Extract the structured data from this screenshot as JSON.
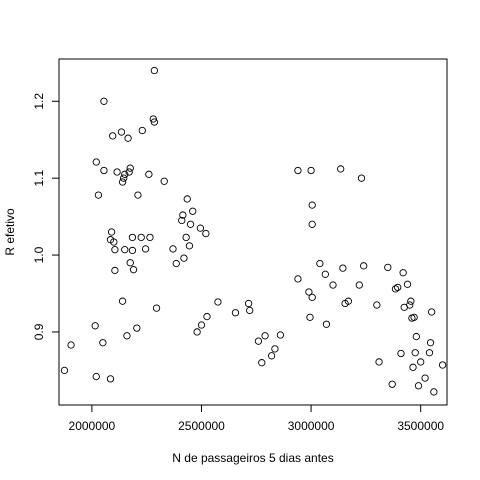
{
  "chart_data": {
    "type": "scatter",
    "xlabel": "N de passageiros 5 dias antes",
    "ylabel": "R efetivo",
    "xlim": [
      1850000,
      3620000
    ],
    "ylim": [
      0.805,
      1.255
    ],
    "xticks": [
      2000000,
      2500000,
      3000000,
      3500000
    ],
    "xtick_labels": [
      "2000000",
      "2500000",
      "3000000",
      "3500000"
    ],
    "yticks": [
      0.9,
      1.0,
      1.1,
      1.2
    ],
    "ytick_labels": [
      "0.9",
      "1.0",
      "1.1",
      "1.2"
    ],
    "grid": false,
    "marker": "open-circle",
    "series": [
      {
        "points": [
          [
            1875000,
            0.85
          ],
          [
            1905000,
            0.883
          ],
          [
            2015000,
            0.908
          ],
          [
            2020000,
            0.842
          ],
          [
            2020000,
            1.121
          ],
          [
            2030000,
            1.078
          ],
          [
            2050000,
            0.886
          ],
          [
            2055000,
            1.11
          ],
          [
            2055000,
            1.2
          ],
          [
            2085000,
            0.839
          ],
          [
            2085000,
            1.02
          ],
          [
            2090000,
            1.03
          ],
          [
            2095000,
            1.155
          ],
          [
            2100000,
            1.017
          ],
          [
            2105000,
            1.007
          ],
          [
            2105000,
            0.98
          ],
          [
            2115000,
            1.108
          ],
          [
            2135000,
            1.16
          ],
          [
            2140000,
            1.095
          ],
          [
            2140000,
            0.94
          ],
          [
            2145000,
            1.1
          ],
          [
            2150000,
            1.105
          ],
          [
            2150000,
            1.007
          ],
          [
            2160000,
            0.895
          ],
          [
            2165000,
            1.152
          ],
          [
            2170000,
            1.108
          ],
          [
            2175000,
            1.113
          ],
          [
            2175000,
            0.99
          ],
          [
            2185000,
            1.023
          ],
          [
            2185000,
            1.006
          ],
          [
            2190000,
            0.981
          ],
          [
            2205000,
            0.905
          ],
          [
            2210000,
            1.078
          ],
          [
            2225000,
            1.023
          ],
          [
            2230000,
            1.162
          ],
          [
            2245000,
            1.008
          ],
          [
            2260000,
            1.105
          ],
          [
            2265000,
            1.023
          ],
          [
            2280000,
            1.177
          ],
          [
            2285000,
            1.173
          ],
          [
            2285000,
            1.24
          ],
          [
            2295000,
            0.931
          ],
          [
            2330000,
            1.096
          ],
          [
            2370000,
            1.008
          ],
          [
            2385000,
            0.989
          ],
          [
            2410000,
            1.045
          ],
          [
            2415000,
            1.052
          ],
          [
            2420000,
            0.996
          ],
          [
            2430000,
            1.023
          ],
          [
            2435000,
            1.073
          ],
          [
            2445000,
            1.012
          ],
          [
            2450000,
            1.04
          ],
          [
            2460000,
            1.057
          ],
          [
            2480000,
            0.9
          ],
          [
            2495000,
            1.035
          ],
          [
            2500000,
            0.909
          ],
          [
            2520000,
            1.028
          ],
          [
            2525000,
            0.92
          ],
          [
            2575000,
            0.939
          ],
          [
            2655000,
            0.925
          ],
          [
            2715000,
            0.937
          ],
          [
            2720000,
            0.928
          ],
          [
            2760000,
            0.888
          ],
          [
            2775000,
            0.86
          ],
          [
            2790000,
            0.895
          ],
          [
            2820000,
            0.869
          ],
          [
            2835000,
            0.878
          ],
          [
            2860000,
            0.896
          ],
          [
            2940000,
            1.11
          ],
          [
            2940000,
            0.969
          ],
          [
            2990000,
            0.952
          ],
          [
            2995000,
            0.919
          ],
          [
            3000000,
            1.11
          ],
          [
            3005000,
            1.065
          ],
          [
            3005000,
            1.04
          ],
          [
            3005000,
            0.945
          ],
          [
            3040000,
            0.989
          ],
          [
            3065000,
            0.975
          ],
          [
            3070000,
            0.91
          ],
          [
            3100000,
            0.961
          ],
          [
            3135000,
            1.112
          ],
          [
            3145000,
            0.983
          ],
          [
            3155000,
            0.937
          ],
          [
            3170000,
            0.94
          ],
          [
            3220000,
            0.961
          ],
          [
            3230000,
            1.1
          ],
          [
            3240000,
            0.986
          ],
          [
            3300000,
            0.935
          ],
          [
            3310000,
            0.861
          ],
          [
            3350000,
            0.984
          ],
          [
            3370000,
            0.832
          ],
          [
            3385000,
            0.956
          ],
          [
            3395000,
            0.958
          ],
          [
            3410000,
            0.872
          ],
          [
            3420000,
            0.977
          ],
          [
            3425000,
            0.932
          ],
          [
            3440000,
            0.962
          ],
          [
            3450000,
            0.935
          ],
          [
            3455000,
            0.94
          ],
          [
            3460000,
            0.918
          ],
          [
            3465000,
            0.854
          ],
          [
            3470000,
            0.919
          ],
          [
            3475000,
            0.873
          ],
          [
            3480000,
            0.894
          ],
          [
            3490000,
            0.83
          ],
          [
            3500000,
            0.861
          ],
          [
            3520000,
            0.84
          ],
          [
            3540000,
            0.873
          ],
          [
            3545000,
            0.886
          ],
          [
            3550000,
            0.926
          ],
          [
            3560000,
            0.822
          ],
          [
            3600000,
            0.857
          ]
        ]
      }
    ]
  }
}
